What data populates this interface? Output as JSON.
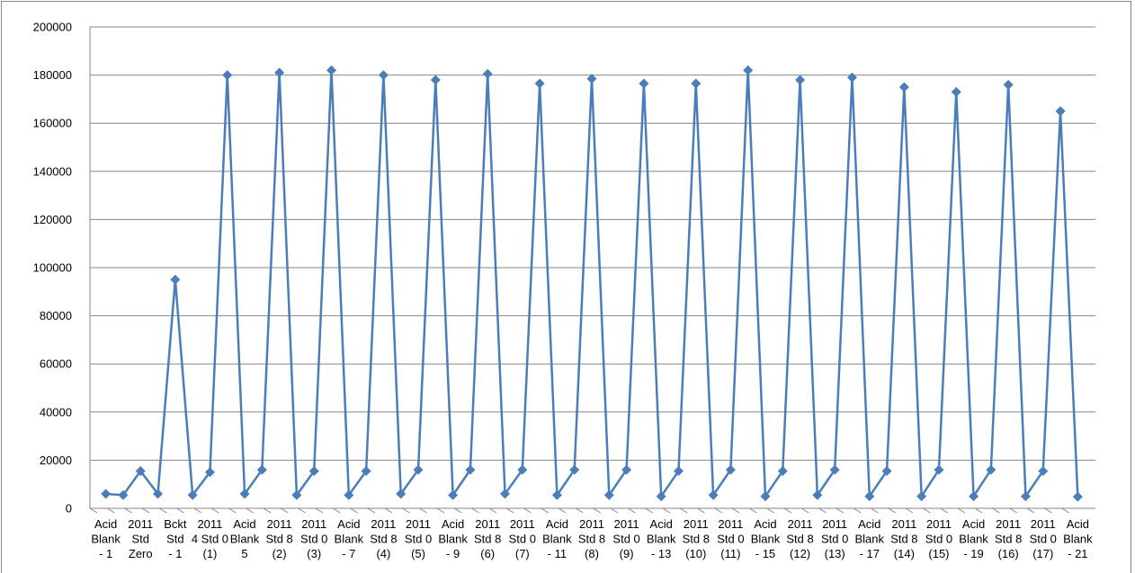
{
  "chart_data": {
    "type": "line",
    "categories": [
      "Acid\nBlank\n- 1",
      null,
      "2011\nStd\nZero",
      null,
      "Bckt\nStd\n- 1",
      null,
      "2011\n4 Std 0\n(1)",
      null,
      "Acid\nBlank\n5",
      null,
      "2011\nStd 8\n(2)",
      null,
      "2011\nStd 0\n(3)",
      null,
      "Acid\nBlank\n- 7",
      null,
      "2011\nStd 8\n(4)",
      null,
      "2011\nStd 0\n(5)",
      null,
      "Acid\nBlank\n- 9",
      null,
      "2011\nStd 8\n(6)",
      null,
      "2011\nStd 0\n(7)",
      null,
      "Acid\nBlank\n- 11",
      null,
      "2011\nStd 8\n(8)",
      null,
      "2011\nStd 0\n(9)",
      null,
      "Acid\nBlank\n- 13",
      null,
      "2011\nStd 8\n(10)",
      null,
      "2011\nStd 0\n(11)",
      null,
      "Acid\nBlank\n- 15",
      null,
      "2011\nStd 8\n(12)",
      null,
      "2011\nStd 0\n(13)",
      null,
      "Acid\nBlank\n- 17",
      null,
      "2011\nStd 8\n(14)",
      null,
      "2011\nStd 0\n(15)",
      null,
      "Acid\nBlank\n- 19",
      null,
      "2011\nStd 8\n(16)",
      null,
      "2011\nStd 0\n(17)",
      null,
      "Acid\nBlank\n- 21"
    ],
    "values": [
      6000,
      5500,
      15500,
      6000,
      95000,
      5500,
      15000,
      180000,
      6000,
      16000,
      181000,
      5500,
      15500,
      182000,
      5500,
      15500,
      180000,
      6000,
      16000,
      178000,
      5500,
      16000,
      180500,
      6000,
      16000,
      176500,
      5500,
      16000,
      178500,
      5500,
      16000,
      176500,
      5000,
      15500,
      176500,
      5500,
      16000,
      182000,
      5000,
      15500,
      178000,
      5500,
      16000,
      179000,
      5000,
      15500,
      175000,
      5000,
      16000,
      173000,
      5000,
      16000,
      176000,
      5000,
      15500,
      165000,
      4800
    ],
    "color": "#4a7ebb",
    "ylim": [
      0,
      200000
    ],
    "yticks": [
      0,
      20000,
      40000,
      60000,
      80000,
      100000,
      120000,
      140000,
      160000,
      180000,
      200000
    ],
    "grid": true
  }
}
